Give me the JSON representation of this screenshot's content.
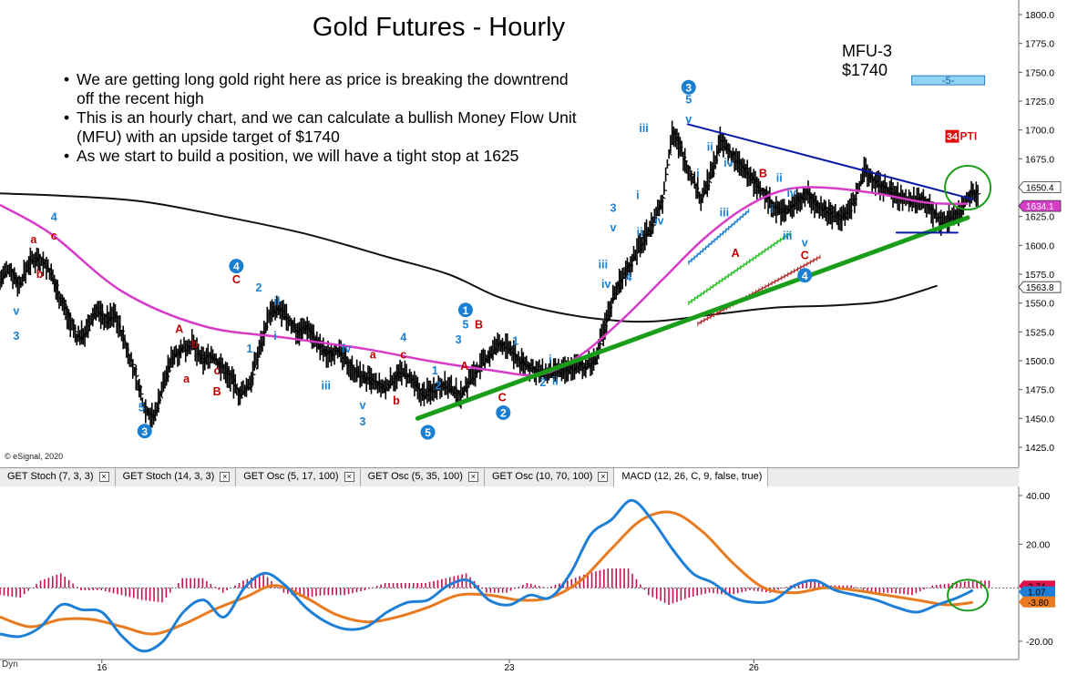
{
  "chart_data": {
    "type": "line",
    "title": "Gold Futures - Hourly",
    "source_label": "© eSignal, 2020",
    "target_label": "MFU-3",
    "target_value": "$1740",
    "pti_label": "PTI",
    "pti_value": "34",
    "box_label": "-5-",
    "notes": [
      [
        "We are getting long gold right here as price is breaking the downtrend",
        "off the recent high"
      ],
      [
        "This is an hourly chart, and we can calculate a bullish Money Flow Unit",
        "(MFU) with an upside target of $1740"
      ],
      [
        "As we start to build a position, we will have a tight stop at 1625"
      ]
    ],
    "y_ticks": [
      "1800.0",
      "1775.0",
      "1750.0",
      "1725.0",
      "1700.0",
      "1675.0",
      "1650.0",
      "1625.0",
      "1600.0",
      "1575.0",
      "1550.0",
      "1525.0",
      "1500.0",
      "1475.0",
      "1450.0",
      "1425.0"
    ],
    "y_range": [
      1415,
      1805
    ],
    "x_labels": [
      {
        "label": "16",
        "pos": 0.1
      },
      {
        "label": "23",
        "pos": 0.5
      },
      {
        "label": "26",
        "pos": 0.74
      }
    ],
    "price_labels": [
      {
        "value": "1650.4",
        "price": 1650.4,
        "bg": "#ffffff",
        "fg": "#000000"
      },
      {
        "value": "1634.1",
        "price": 1634.1,
        "bg": "#d63cc8",
        "fg": "#ffffff"
      },
      {
        "value": "1563.8",
        "price": 1563.8,
        "bg": "#ffffff",
        "fg": "#000000"
      }
    ],
    "price_closes": [
      1570,
      1580,
      1565,
      1585,
      1590,
      1580,
      1560,
      1540,
      1520,
      1525,
      1545,
      1535,
      1540,
      1515,
      1490,
      1460,
      1450,
      1480,
      1505,
      1510,
      1515,
      1500,
      1505,
      1495,
      1485,
      1470,
      1480,
      1510,
      1540,
      1545,
      1535,
      1525,
      1530,
      1515,
      1505,
      1510,
      1500,
      1490,
      1485,
      1480,
      1475,
      1485,
      1490,
      1480,
      1470,
      1475,
      1480,
      1475,
      1470,
      1485,
      1495,
      1505,
      1515,
      1510,
      1500,
      1495,
      1490,
      1488,
      1490,
      1492,
      1495,
      1495,
      1500,
      1530,
      1560,
      1575,
      1590,
      1605,
      1620,
      1640,
      1700,
      1680,
      1660,
      1640,
      1660,
      1690,
      1680,
      1670,
      1660,
      1650,
      1640,
      1630,
      1630,
      1640,
      1645,
      1635,
      1630,
      1625,
      1625,
      1640,
      1665,
      1655,
      1650,
      1645,
      1640,
      1638,
      1642,
      1630,
      1620,
      1625,
      1630,
      1645
    ],
    "price_range_start": 0.0,
    "price_range_end": 0.952,
    "pink_ma": [
      [
        0,
        1635
      ],
      [
        0.05,
        1610
      ],
      [
        0.12,
        1560
      ],
      [
        0.2,
        1530
      ],
      [
        0.28,
        1520
      ],
      [
        0.36,
        1510
      ],
      [
        0.42,
        1500
      ],
      [
        0.48,
        1492
      ],
      [
        0.53,
        1488
      ],
      [
        0.57,
        1505
      ],
      [
        0.61,
        1535
      ],
      [
        0.65,
        1570
      ],
      [
        0.69,
        1605
      ],
      [
        0.73,
        1632
      ],
      [
        0.77,
        1648
      ],
      [
        0.81,
        1650
      ],
      [
        0.86,
        1645
      ],
      [
        0.91,
        1637
      ],
      [
        0.95,
        1636
      ]
    ],
    "black_ma": [
      [
        0,
        1645
      ],
      [
        0.06,
        1643
      ],
      [
        0.14,
        1638
      ],
      [
        0.22,
        1625
      ],
      [
        0.3,
        1610
      ],
      [
        0.38,
        1590
      ],
      [
        0.44,
        1575
      ],
      [
        0.49,
        1555
      ],
      [
        0.54,
        1543
      ],
      [
        0.59,
        1536
      ],
      [
        0.64,
        1534
      ],
      [
        0.7,
        1540
      ],
      [
        0.76,
        1546
      ],
      [
        0.82,
        1548
      ],
      [
        0.87,
        1552
      ],
      [
        0.92,
        1565
      ]
    ],
    "trend_lines": [
      {
        "color": "#1a9e1a",
        "width": 5,
        "points": [
          [
            0.41,
            1450
          ],
          [
            0.95,
            1624
          ]
        ]
      },
      {
        "color": "#0a1aa8",
        "width": 2,
        "points": [
          [
            0.675,
            1705
          ],
          [
            0.955,
            1640
          ]
        ]
      },
      {
        "color": "#0a1aa8",
        "width": 2,
        "points": [
          [
            0.88,
            1611
          ],
          [
            0.94,
            1611
          ]
        ]
      }
    ],
    "wave_labels": [
      {
        "t": "4",
        "x": 0.053,
        "p": 1621,
        "c": "#1a7fd1"
      },
      {
        "t": "a",
        "x": 0.033,
        "p": 1602,
        "c": "#c00000"
      },
      {
        "t": "c",
        "x": 0.053,
        "p": 1605,
        "c": "#c00000"
      },
      {
        "t": "b",
        "x": 0.039,
        "p": 1572,
        "c": "#c00000"
      },
      {
        "t": "v",
        "x": 0.016,
        "p": 1540,
        "c": "#1a7fd1"
      },
      {
        "t": "3",
        "x": 0.016,
        "p": 1518,
        "c": "#1a7fd1"
      },
      {
        "t": "5",
        "x": 0.139,
        "p": 1456,
        "c": "#1a7fd1"
      },
      {
        "t": "A",
        "x": 0.176,
        "p": 1524,
        "c": "#c00000"
      },
      {
        "t": "b",
        "x": 0.191,
        "p": 1511,
        "c": "#c00000"
      },
      {
        "t": "a",
        "x": 0.183,
        "p": 1481,
        "c": "#c00000"
      },
      {
        "t": "c",
        "x": 0.213,
        "p": 1488,
        "c": "#c00000"
      },
      {
        "t": "B",
        "x": 0.213,
        "p": 1470,
        "c": "#c00000"
      },
      {
        "t": "C",
        "x": 0.232,
        "p": 1567,
        "c": "#c00000"
      },
      {
        "t": "2",
        "x": 0.254,
        "p": 1560,
        "c": "#1a7fd1"
      },
      {
        "t": "ii",
        "x": 0.272,
        "p": 1548,
        "c": "#1a7fd1"
      },
      {
        "t": "1",
        "x": 0.245,
        "p": 1507,
        "c": "#1a7fd1"
      },
      {
        "t": "i",
        "x": 0.27,
        "p": 1518,
        "c": "#1a7fd1"
      },
      {
        "t": "iii",
        "x": 0.32,
        "p": 1475,
        "c": "#1a7fd1"
      },
      {
        "t": "iv",
        "x": 0.34,
        "p": 1507,
        "c": "#1a7fd1"
      },
      {
        "t": "a",
        "x": 0.366,
        "p": 1502,
        "c": "#c00000"
      },
      {
        "t": "c",
        "x": 0.396,
        "p": 1502,
        "c": "#c00000"
      },
      {
        "t": "4",
        "x": 0.396,
        "p": 1517,
        "c": "#1a7fd1"
      },
      {
        "t": "b",
        "x": 0.389,
        "p": 1462,
        "c": "#c00000"
      },
      {
        "t": "v",
        "x": 0.356,
        "p": 1458,
        "c": "#1a7fd1"
      },
      {
        "t": "3",
        "x": 0.356,
        "p": 1444,
        "c": "#1a7fd1"
      },
      {
        "t": "1",
        "x": 0.427,
        "p": 1488,
        "c": "#1a7fd1"
      },
      {
        "t": "2",
        "x": 0.43,
        "p": 1475,
        "c": "#1a7fd1"
      },
      {
        "t": "3",
        "x": 0.45,
        "p": 1515,
        "c": "#1a7fd1"
      },
      {
        "t": "5",
        "x": 0.457,
        "p": 1528,
        "c": "#1a7fd1"
      },
      {
        "t": "B",
        "x": 0.47,
        "p": 1528,
        "c": "#c00000"
      },
      {
        "t": "A",
        "x": 0.456,
        "p": 1492,
        "c": "#c00000"
      },
      {
        "t": "C",
        "x": 0.493,
        "p": 1465,
        "c": "#c00000"
      },
      {
        "t": "1",
        "x": 0.506,
        "p": 1514,
        "c": "#1a7fd1"
      },
      {
        "t": "i",
        "x": 0.54,
        "p": 1498,
        "c": "#1a7fd1"
      },
      {
        "t": "2",
        "x": 0.533,
        "p": 1478,
        "c": "#1a7fd1"
      },
      {
        "t": "ii",
        "x": 0.545,
        "p": 1479,
        "c": "#1a7fd1"
      },
      {
        "t": "iii",
        "x": 0.592,
        "p": 1580,
        "c": "#1a7fd1"
      },
      {
        "t": "iv",
        "x": 0.595,
        "p": 1563,
        "c": "#1a7fd1"
      },
      {
        "t": "v",
        "x": 0.602,
        "p": 1612,
        "c": "#1a7fd1"
      },
      {
        "t": "3",
        "x": 0.602,
        "p": 1629,
        "c": "#1a7fd1"
      },
      {
        "t": "4",
        "x": 0.617,
        "p": 1569,
        "c": "#1a7fd1"
      },
      {
        "t": "i",
        "x": 0.626,
        "p": 1640,
        "c": "#1a7fd1"
      },
      {
        "t": "ii",
        "x": 0.628,
        "p": 1608,
        "c": "#1a7fd1"
      },
      {
        "t": "iii",
        "x": 0.632,
        "p": 1698,
        "c": "#1a7fd1"
      },
      {
        "t": "iv",
        "x": 0.647,
        "p": 1618,
        "c": "#1a7fd1"
      },
      {
        "t": "5",
        "x": 0.676,
        "p": 1723,
        "c": "#1a7fd1"
      },
      {
        "t": "v",
        "x": 0.676,
        "p": 1706,
        "c": "#1a7fd1"
      },
      {
        "t": "ii",
        "x": 0.697,
        "p": 1682,
        "c": "#1a7fd1"
      },
      {
        "t": "i",
        "x": 0.685,
        "p": 1659,
        "c": "#1a7fd1"
      },
      {
        "t": "iv",
        "x": 0.715,
        "p": 1668,
        "c": "#1a7fd1"
      },
      {
        "t": "iii",
        "x": 0.711,
        "p": 1625,
        "c": "#1a7fd1"
      },
      {
        "t": "B",
        "x": 0.749,
        "p": 1659,
        "c": "#c00000"
      },
      {
        "t": "ii",
        "x": 0.765,
        "p": 1655,
        "c": "#1a7fd1"
      },
      {
        "t": "i",
        "x": 0.758,
        "p": 1628,
        "c": "#1a7fd1"
      },
      {
        "t": "iv",
        "x": 0.777,
        "p": 1642,
        "c": "#1a7fd1"
      },
      {
        "t": "iii",
        "x": 0.773,
        "p": 1605,
        "c": "#1a7fd1"
      },
      {
        "t": "v",
        "x": 0.79,
        "p": 1599,
        "c": "#1a7fd1"
      },
      {
        "t": "A",
        "x": 0.722,
        "p": 1590,
        "c": "#c00000"
      },
      {
        "t": "C",
        "x": 0.79,
        "p": 1588,
        "c": "#c00000"
      }
    ],
    "wave_circles": [
      {
        "t": "3",
        "x": 0.142,
        "p": 1439
      },
      {
        "t": "4",
        "x": 0.232,
        "p": 1582
      },
      {
        "t": "5",
        "x": 0.42,
        "p": 1438
      },
      {
        "t": "1",
        "x": 0.457,
        "p": 1544
      },
      {
        "t": "2",
        "x": 0.494,
        "p": 1455
      },
      {
        "t": "3",
        "x": 0.676,
        "p": 1737
      },
      {
        "t": "4",
        "x": 0.79,
        "p": 1574
      }
    ],
    "hash_lines": [
      {
        "color": "#1a7fd1",
        "points": [
          [
            0.676,
            1585
          ],
          [
            0.735,
            1630
          ]
        ]
      },
      {
        "color": "#22c022",
        "points": [
          [
            0.676,
            1550
          ],
          [
            0.775,
            1610
          ]
        ]
      },
      {
        "color": "#b03030",
        "points": [
          [
            0.685,
            1532
          ],
          [
            0.805,
            1590
          ]
        ]
      }
    ],
    "macd": {
      "title": "MACD (12, 26, C, 9, false, true)",
      "y_ticks": [
        "40.00",
        "20.00",
        "-20.00"
      ],
      "y_range": [
        -26,
        45
      ],
      "value_labels": [
        {
          "value": "2.74",
          "level": 2.74,
          "bg": "#e0104a"
        },
        {
          "value": "1.07",
          "level": 0.4,
          "bg": "#1e7fd6"
        },
        {
          "value": "-3.80",
          "level": -3.8,
          "bg": "#e87a1f"
        }
      ],
      "macd_line": [
        [
          0,
          -17
        ],
        [
          0.02,
          -18
        ],
        [
          0.04,
          -14
        ],
        [
          0.06,
          -5
        ],
        [
          0.08,
          -7
        ],
        [
          0.1,
          -8
        ],
        [
          0.12,
          -18
        ],
        [
          0.14,
          -24
        ],
        [
          0.16,
          -20
        ],
        [
          0.18,
          -8
        ],
        [
          0.2,
          -3
        ],
        [
          0.22,
          -10
        ],
        [
          0.24,
          2
        ],
        [
          0.26,
          8
        ],
        [
          0.28,
          3
        ],
        [
          0.3,
          -6
        ],
        [
          0.32,
          -12
        ],
        [
          0.34,
          -15
        ],
        [
          0.36,
          -14
        ],
        [
          0.38,
          -8
        ],
        [
          0.4,
          -4
        ],
        [
          0.42,
          -3
        ],
        [
          0.44,
          3
        ],
        [
          0.46,
          5
        ],
        [
          0.48,
          -3
        ],
        [
          0.5,
          -5
        ],
        [
          0.52,
          -1
        ],
        [
          0.54,
          -2
        ],
        [
          0.56,
          8
        ],
        [
          0.58,
          24
        ],
        [
          0.6,
          30
        ],
        [
          0.62,
          38
        ],
        [
          0.64,
          30
        ],
        [
          0.66,
          18
        ],
        [
          0.68,
          8
        ],
        [
          0.7,
          4
        ],
        [
          0.72,
          -2
        ],
        [
          0.74,
          -4
        ],
        [
          0.76,
          -3
        ],
        [
          0.78,
          3
        ],
        [
          0.8,
          5
        ],
        [
          0.82,
          1
        ],
        [
          0.84,
          -1
        ],
        [
          0.86,
          -3
        ],
        [
          0.88,
          -6
        ],
        [
          0.9,
          -8
        ],
        [
          0.92,
          -5
        ],
        [
          0.94,
          -2
        ],
        [
          0.955,
          1
        ]
      ],
      "signal_line": [
        [
          0,
          -10
        ],
        [
          0.03,
          -14
        ],
        [
          0.06,
          -11
        ],
        [
          0.09,
          -11
        ],
        [
          0.12,
          -14
        ],
        [
          0.15,
          -17
        ],
        [
          0.18,
          -13
        ],
        [
          0.21,
          -7
        ],
        [
          0.24,
          -2
        ],
        [
          0.27,
          3
        ],
        [
          0.3,
          -2
        ],
        [
          0.33,
          -9
        ],
        [
          0.36,
          -12
        ],
        [
          0.39,
          -10
        ],
        [
          0.42,
          -6
        ],
        [
          0.45,
          -1
        ],
        [
          0.48,
          -1
        ],
        [
          0.51,
          -3
        ],
        [
          0.54,
          -2
        ],
        [
          0.57,
          5
        ],
        [
          0.6,
          18
        ],
        [
          0.63,
          30
        ],
        [
          0.66,
          33
        ],
        [
          0.69,
          25
        ],
        [
          0.72,
          12
        ],
        [
          0.75,
          2
        ],
        [
          0.78,
          0
        ],
        [
          0.81,
          2
        ],
        [
          0.84,
          1
        ],
        [
          0.87,
          -1
        ],
        [
          0.9,
          -3
        ],
        [
          0.93,
          -5
        ],
        [
          0.955,
          -4
        ]
      ],
      "histogram": [
        -3,
        -4,
        3,
        6,
        -1,
        -1,
        -3,
        -5,
        -6,
        4,
        4,
        -2,
        3,
        6,
        -2,
        -4,
        -3,
        -3,
        -1,
        2,
        2,
        2,
        4,
        6,
        -2,
        -2,
        2,
        0,
        3,
        6,
        8,
        8,
        -3,
        -7,
        -4,
        -2,
        -3,
        -1,
        -2,
        1,
        3,
        1,
        1,
        -2,
        -2,
        -3,
        1,
        2,
        3
      ],
      "zero_level": 0
    },
    "tabs": [
      "GET Stoch (7, 3, 3)",
      "GET Stoch (14, 3, 3)",
      "GET Osc (5, 17, 100)",
      "GET Osc (5, 35, 100)",
      "GET Osc (10, 70, 100)",
      "MACD (12, 26, C, 9, false, true)"
    ],
    "active_tab": 5,
    "footer": "Dyn",
    "colors": {
      "pink_ma": "#d63cc8",
      "black_ma": "#111111",
      "macd": "#1e7fd6",
      "signal": "#e87a1f",
      "hist": "#c8124a",
      "circle": "#1a9e1a",
      "box": "#8fd4f5",
      "pti": "#e01010"
    }
  }
}
